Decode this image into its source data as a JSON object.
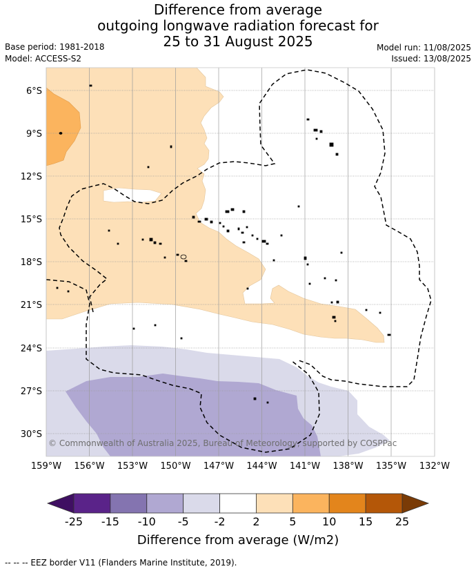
{
  "title": {
    "line1": "Difference from average",
    "line2": "outgoing longwave radiation forecast for",
    "line3": "25 to 31 August 2025"
  },
  "meta": {
    "base_period": "Base period: 1981-2018",
    "model": "Model: ACCESS-S2",
    "model_run": "Model run: 11/08/2025",
    "issued": "Issued: 13/08/2025"
  },
  "map": {
    "lat_labels": [
      "6°S",
      "9°S",
      "12°S",
      "15°S",
      "18°S",
      "21°S",
      "24°S",
      "27°S",
      "30°S"
    ],
    "lon_labels": [
      "159°W",
      "156°W",
      "153°W",
      "150°W",
      "147°W",
      "144°W",
      "141°W",
      "138°W",
      "135°W",
      "132°W"
    ],
    "copyright": "© Commonwealth of Australia 2025, Bureau of Meteorology, supported by COSPPac"
  },
  "colorbar": {
    "ticks": [
      "-25",
      "-15",
      "-10",
      "-5",
      "-2",
      "2",
      "5",
      "10",
      "15",
      "25"
    ],
    "colors": [
      "#3f0f62",
      "#5a2389",
      "#8474b0",
      "#b0a8d2",
      "#dadaea",
      "#ffffff",
      "#fde0b8",
      "#fbb45e",
      "#e3851c",
      "#b45708",
      "#7a3b06"
    ],
    "title": "Difference from average (W/m2)"
  },
  "footnote": "--  --  -- EEZ border V11 (Flanders Marine Institute, 2019)."
}
